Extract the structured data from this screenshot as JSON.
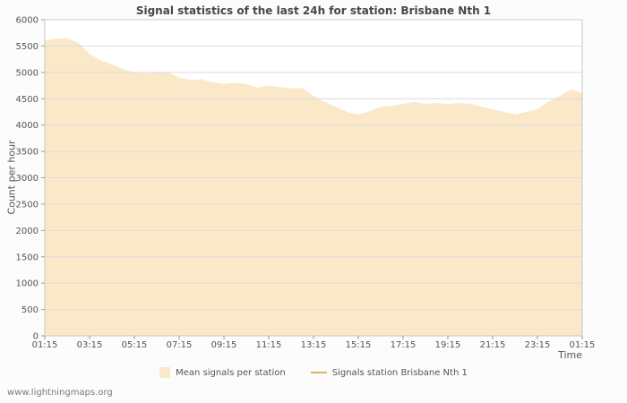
{
  "title": "Signal statistics of the last 24h for station: Brisbane Nth 1",
  "watermark": "www.lightningmaps.org",
  "axes": {
    "y_label": "Count per hour",
    "x_label": "Time"
  },
  "legend": [
    {
      "type": "area",
      "label": "Mean signals per station",
      "color": "#fae8c8"
    },
    {
      "type": "line",
      "label": "Signals station Brisbane Nth 1",
      "color": "#d6ba4e"
    }
  ],
  "colors": {
    "area_fill": "#fae8c8",
    "station_line": "#d6ba4e",
    "gridline": "#dcdcdc",
    "plot_border": "#c8c8c8",
    "tick": "#999999",
    "tick_text": "#555555",
    "plot_background": "#ffffff"
  },
  "chart_data": {
    "type": "area",
    "title": "Signal statistics of the last 24h for station: Brisbane Nth 1",
    "xlabel": "Time",
    "ylabel": "Count per hour",
    "ylim": [
      0,
      6000
    ],
    "ytick_step": 500,
    "grid": true,
    "legend_position": "bottom",
    "x_start_hour": 1.25,
    "x_end_hour": 25.25,
    "x_tick_interval_hours": 2,
    "x_tick_labels": [
      "01:15",
      "03:15",
      "05:15",
      "07:15",
      "09:15",
      "11:15",
      "13:15",
      "15:15",
      "17:15",
      "19:15",
      "21:15",
      "23:15",
      "01:15"
    ],
    "series": [
      {
        "name": "Mean signals per station",
        "type": "area",
        "color": "#fae8c8",
        "interval_hours": 0.5,
        "values": [
          5600,
          5640,
          5650,
          5560,
          5350,
          5230,
          5150,
          5060,
          5000,
          4980,
          5010,
          5000,
          4900,
          4860,
          4870,
          4810,
          4780,
          4800,
          4780,
          4710,
          4750,
          4720,
          4700,
          4700,
          4550,
          4440,
          4350,
          4250,
          4200,
          4260,
          4350,
          4360,
          4400,
          4440,
          4400,
          4420,
          4400,
          4420,
          4400,
          4350,
          4300,
          4250,
          4200,
          4250,
          4300,
          4450,
          4550,
          4680,
          4600
        ]
      },
      {
        "name": "Signals station Brisbane Nth 1",
        "type": "line",
        "color": "#d6ba4e",
        "interval_hours": 0.5,
        "values": []
      }
    ]
  }
}
